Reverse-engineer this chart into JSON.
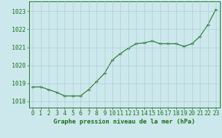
{
  "x": [
    0,
    1,
    2,
    3,
    4,
    5,
    6,
    7,
    8,
    9,
    10,
    11,
    12,
    13,
    14,
    15,
    16,
    17,
    18,
    19,
    20,
    21,
    22,
    23
  ],
  "y": [
    1018.8,
    1018.8,
    1018.65,
    1018.5,
    1018.3,
    1018.3,
    1018.3,
    1018.65,
    1019.1,
    1019.55,
    1020.3,
    1020.65,
    1020.95,
    1021.2,
    1021.25,
    1021.35,
    1021.2,
    1021.2,
    1021.2,
    1021.05,
    1021.2,
    1021.6,
    1022.25,
    1023.1
  ],
  "line_color": "#1a6e1a",
  "marker_color": "#1a6e1a",
  "bg_color": "#cce8ec",
  "grid_color": "#aacdd4",
  "title": "Graphe pression niveau de la mer (hPa)",
  "title_fontsize": 6.5,
  "tick_fontsize": 6.0,
  "yticks": [
    1018,
    1019,
    1020,
    1021,
    1022,
    1023
  ],
  "xtick_labels": [
    "0",
    "1",
    "2",
    "3",
    "4",
    "5",
    "6",
    "7",
    "8",
    "9",
    "10",
    "11",
    "12",
    "13",
    "14",
    "15",
    "16",
    "17",
    "18",
    "19",
    "20",
    "21",
    "22",
    "23"
  ],
  "ylim": [
    1017.65,
    1023.55
  ],
  "xlim": [
    -0.5,
    23.5
  ]
}
